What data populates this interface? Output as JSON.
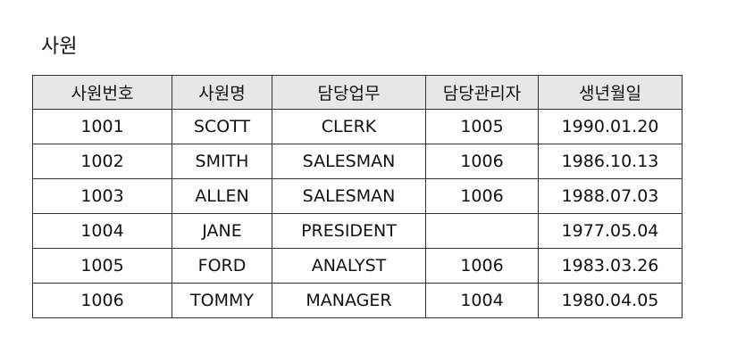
{
  "title": "사원",
  "table": {
    "columns": [
      "사원번호",
      "사원명",
      "담당업무",
      "담당관리자",
      "생년월일"
    ],
    "rows": [
      [
        "1001",
        "SCOTT",
        "CLERK",
        "1005",
        "1990.01.20"
      ],
      [
        "1002",
        "SMITH",
        "SALESMAN",
        "1006",
        "1986.10.13"
      ],
      [
        "1003",
        "ALLEN",
        "SALESMAN",
        "1006",
        "1988.07.03"
      ],
      [
        "1004",
        "JANE",
        "PRESIDENT",
        "",
        "1977.05.04"
      ],
      [
        "1005",
        "FORD",
        "ANALYST",
        "1006",
        "1983.03.26"
      ],
      [
        "1006",
        "TOMMY",
        "MANAGER",
        "1004",
        "1980.04.05"
      ]
    ]
  },
  "colors": {
    "header_bg": "#e7e7e7",
    "border": "#333333",
    "text": "#111111"
  }
}
